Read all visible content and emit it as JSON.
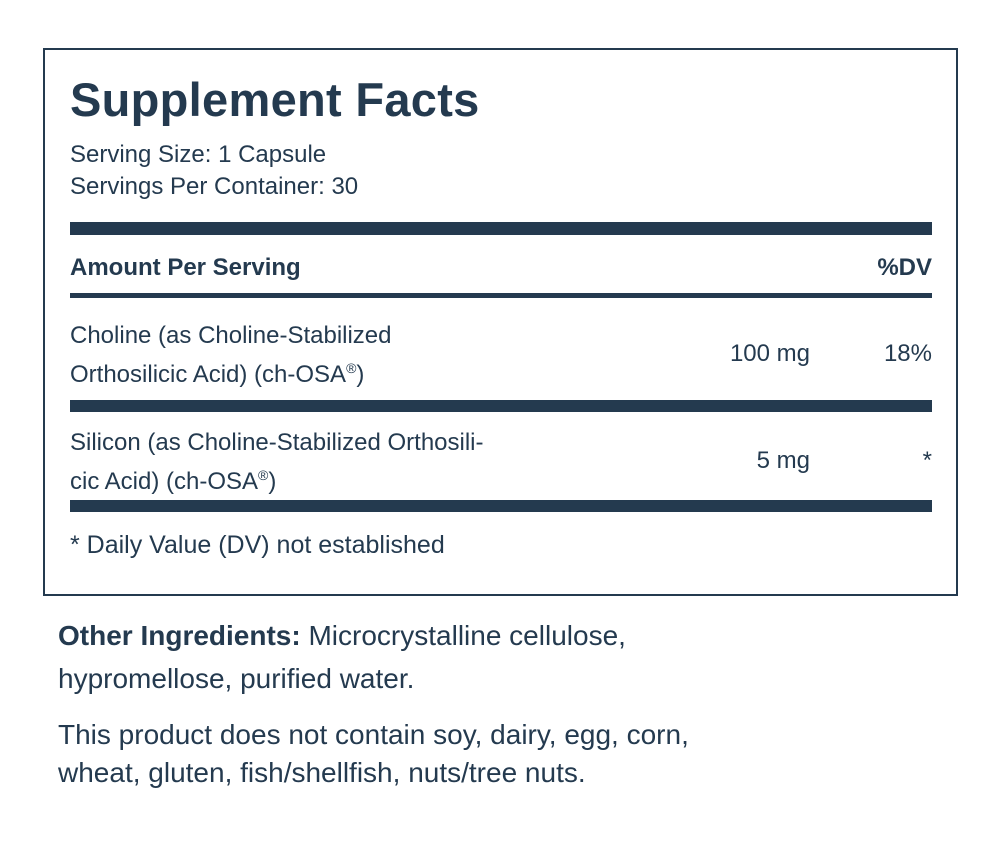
{
  "title": "Supplement Facts",
  "serving_size": "Serving Size: 1 Capsule",
  "servings_per_container": "Servings Per Container: 30",
  "header": {
    "amount_per_serving": "Amount Per Serving",
    "dv": "%DV"
  },
  "rows": [
    {
      "line1": "Choline (as Choline-Stabilized",
      "line2": "Orthosilicic Acid) (ch-OSA",
      "reg": "®",
      "line2_end": ")",
      "amount": "100 mg",
      "dv": "18%"
    },
    {
      "line1": "Silicon (as Choline-Stabilized Orthosili-",
      "line2": "cic Acid) (ch-OSA",
      "reg": "®",
      "line2_end": ")",
      "amount": "5 mg",
      "dv": "*"
    }
  ],
  "footnote": "* Daily Value (DV) not established",
  "other_ingredients": {
    "label": "Other Ingredients:",
    "text": " Microcrystalline cellulose,",
    "text2": "hypromellose, purified water."
  },
  "allergen": {
    "line1": "This product does not contain soy, dairy, egg, corn,",
    "line2": "wheat, gluten, fish/shellfish, nuts/tree nuts."
  },
  "colors": {
    "ink": "#243a4f"
  }
}
